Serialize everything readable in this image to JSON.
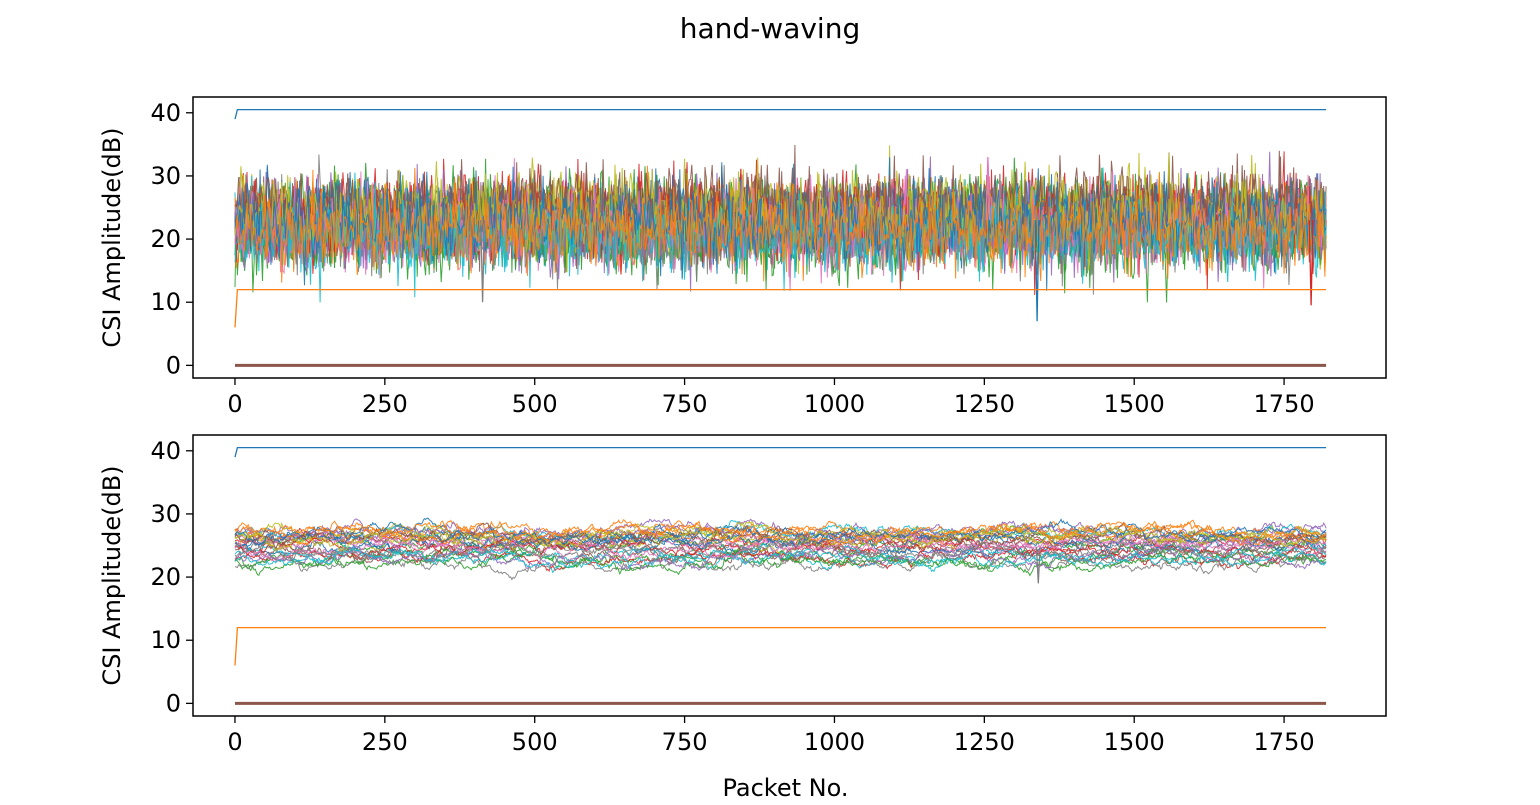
{
  "title": "hand-waving",
  "colors": [
    "#1f77b4",
    "#ff7f0e",
    "#2ca02c",
    "#d62728",
    "#9467bd",
    "#8c564b",
    "#e377c2",
    "#7f7f7f",
    "#bcbd22",
    "#17becf"
  ],
  "chart_data": [
    {
      "type": "line",
      "panel": "raw",
      "xlabel": "",
      "ylabel": "CSI Amplitude(dB)",
      "xlim": [
        -70,
        1920
      ],
      "ylim": [
        -2,
        42.5
      ],
      "xticks": [
        0,
        250,
        500,
        750,
        1000,
        1250,
        1500,
        1750
      ],
      "yticks": [
        0,
        10,
        20,
        30,
        40
      ],
      "n_packets": 1820,
      "constant_series": [
        {
          "color_index": 0,
          "start": 39,
          "level": 40.5
        },
        {
          "color_index": 1,
          "start": 6,
          "level": 12
        },
        {
          "color_index": 5,
          "start": 0,
          "level": 0
        }
      ],
      "band": {
        "mean_range": [
          20,
          26
        ],
        "noise_sd": 2.8,
        "smooth": false,
        "count": 30,
        "dips": [
          {
            "x": 413,
            "y": 10
          },
          {
            "x": 1338,
            "y": 7
          },
          {
            "x": 1795,
            "y": 9.5
          },
          {
            "x": 1256,
            "y": 33
          }
        ]
      }
    },
    {
      "type": "line",
      "panel": "filtered",
      "xlabel": "Packet No.",
      "ylabel": "CSI Amplitude(dB)",
      "xlim": [
        -70,
        1920
      ],
      "ylim": [
        -2,
        42.5
      ],
      "xticks": [
        0,
        250,
        500,
        750,
        1000,
        1250,
        1500,
        1750
      ],
      "yticks": [
        0,
        10,
        20,
        30,
        40
      ],
      "n_packets": 1820,
      "constant_series": [
        {
          "color_index": 0,
          "start": 39,
          "level": 40.5
        },
        {
          "color_index": 1,
          "start": 6,
          "level": 12
        },
        {
          "color_index": 5,
          "start": 0,
          "level": 0
        }
      ],
      "band": {
        "mean_range": [
          22,
          27.5
        ],
        "noise_sd": 0.7,
        "smooth": true,
        "count": 30,
        "dips": [
          {
            "x": 1340,
            "y": 19
          }
        ]
      }
    }
  ]
}
